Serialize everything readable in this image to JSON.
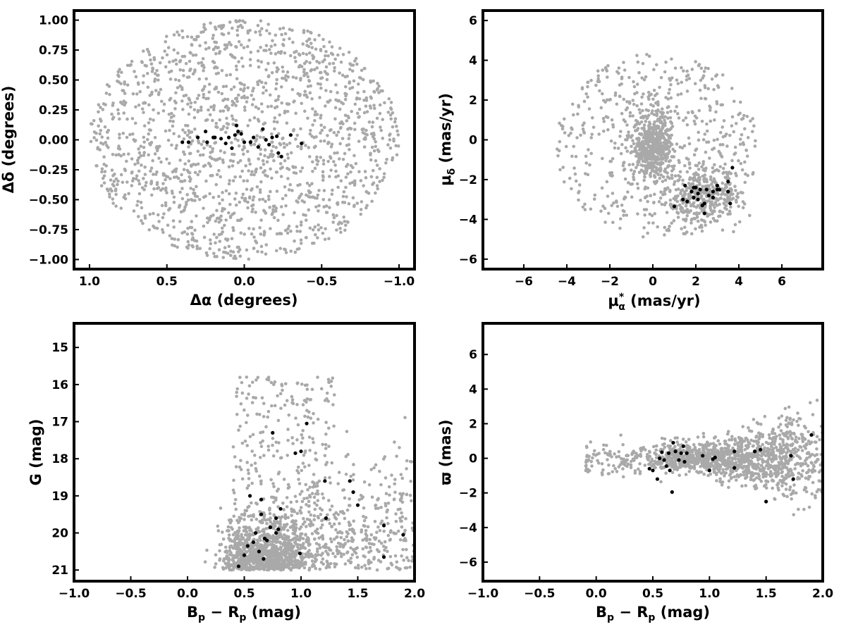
{
  "colors": {
    "background_points": "#a9a9a9",
    "member_points": "#000000",
    "frame": "#000000"
  },
  "chart_data": [
    {
      "id": "position",
      "type": "scatter",
      "title": "",
      "xlabel": "Δα (degrees)",
      "ylabel": "Δδ (degrees)",
      "xlim": [
        1.1,
        -1.1
      ],
      "ylim": [
        -1.08,
        1.08
      ],
      "x_inverted": true,
      "xticks": [
        1.0,
        0.5,
        0.0,
        -0.5,
        -1.0
      ],
      "xtick_labels": [
        "1.0",
        "0.5",
        "0.0",
        "−0.5",
        "−1.0"
      ],
      "yticks": [
        1.0,
        0.75,
        0.5,
        0.25,
        0.0,
        -0.25,
        -0.5,
        -0.75,
        -1.0
      ],
      "ytick_labels": [
        "1.00",
        "0.75",
        "0.50",
        "0.25",
        "0.00",
        "−0.25",
        "−0.50",
        "−0.75",
        "−1.00"
      ],
      "grid": false,
      "series": [
        {
          "role": "field",
          "color": "#a9a9a9",
          "count": 1600,
          "distribution": {
            "shape": "disc",
            "center": [
              0,
              0
            ],
            "radius": 1.0
          }
        },
        {
          "role": "member",
          "color": "#000000",
          "points": [
            [
              0.4,
              -0.02
            ],
            [
              0.36,
              -0.02
            ],
            [
              0.3,
              0.02
            ],
            [
              0.25,
              0.07
            ],
            [
              0.24,
              -0.02
            ],
            [
              0.2,
              0.02
            ],
            [
              0.19,
              0.02
            ],
            [
              0.15,
              0.01
            ],
            [
              0.12,
              -0.03
            ],
            [
              0.1,
              0.02
            ],
            [
              0.08,
              -0.07
            ],
            [
              0.06,
              0.04
            ],
            [
              0.05,
              0.12
            ],
            [
              0.04,
              0.07
            ],
            [
              0.02,
              0.05
            ],
            [
              0.0,
              -0.02
            ],
            [
              -0.04,
              -0.02
            ],
            [
              -0.06,
              0.02
            ],
            [
              -0.09,
              -0.06
            ],
            [
              -0.12,
              0.09
            ],
            [
              -0.14,
              0.0
            ],
            [
              -0.16,
              -0.04
            ],
            [
              -0.18,
              0.02
            ],
            [
              -0.21,
              0.03
            ],
            [
              -0.22,
              -0.11
            ],
            [
              -0.24,
              -0.14
            ],
            [
              -0.3,
              0.04
            ],
            [
              -0.37,
              -0.03
            ]
          ]
        }
      ]
    },
    {
      "id": "proper-motion",
      "type": "scatter",
      "title": "",
      "xlabel_main": "μ",
      "xlabel_sub": "α",
      "xlabel_sup": "*",
      "xlabel_rest": " (mas/yr)",
      "ylabel_main": "μ",
      "ylabel_sub": "δ",
      "ylabel_rest": " (mas/yr)",
      "xlim": [
        -7.9,
        7.9
      ],
      "ylim": [
        -6.5,
        6.5
      ],
      "xticks": [
        -6,
        -4,
        -2,
        0,
        2,
        4,
        6
      ],
      "xtick_labels": [
        "−6",
        "−4",
        "−2",
        "0",
        "2",
        "4",
        "6"
      ],
      "yticks": [
        -6,
        -4,
        -2,
        0,
        2,
        4,
        6
      ],
      "ytick_labels": [
        "−6",
        "−4",
        "−2",
        "0",
        "2",
        "4",
        "6"
      ],
      "grid": false,
      "series": [
        {
          "role": "field",
          "color": "#a9a9a9",
          "count": 1400,
          "distribution": {
            "shape": "two-clumps-in-disc",
            "clump_1": [
              0,
              -0.4
            ],
            "clump_2": [
              2.3,
              -2.8
            ],
            "disc_center": [
              0.2,
              -0.3
            ],
            "disc_radius": 4.7
          }
        },
        {
          "role": "member",
          "color": "#000000",
          "points": [
            [
              1.0,
              -3.35
            ],
            [
              1.4,
              -3.0
            ],
            [
              1.5,
              -2.3
            ],
            [
              1.6,
              -3.1
            ],
            [
              1.8,
              -2.6
            ],
            [
              1.9,
              -2.4
            ],
            [
              1.9,
              -2.9
            ],
            [
              2.0,
              -2.4
            ],
            [
              2.1,
              -2.7
            ],
            [
              2.1,
              -3.0
            ],
            [
              2.2,
              -2.5
            ],
            [
              2.3,
              -3.3
            ],
            [
              2.4,
              -3.7
            ],
            [
              2.4,
              -3.2
            ],
            [
              2.5,
              -2.5
            ],
            [
              2.6,
              -2.8
            ],
            [
              2.8,
              -2.9
            ],
            [
              2.8,
              -2.6
            ],
            [
              3.0,
              -2.3
            ],
            [
              3.0,
              -2.5
            ],
            [
              3.1,
              -2.5
            ],
            [
              3.5,
              -2.6
            ],
            [
              3.6,
              -3.2
            ],
            [
              3.5,
              -2.1
            ],
            [
              3.7,
              -1.4
            ]
          ]
        }
      ]
    },
    {
      "id": "cmd",
      "type": "scatter",
      "title": "",
      "xlabel_main": "B",
      "xlabel_sub1": "p",
      "xlabel_mid": " − R",
      "xlabel_sub2": "p",
      "xlabel_rest": " (mag)",
      "ylabel": "G (mag)",
      "xlim": [
        -1.0,
        2.0
      ],
      "ylim": [
        21.3,
        14.35
      ],
      "y_inverted": true,
      "xticks": [
        -1.0,
        -0.5,
        0.0,
        0.5,
        1.0,
        1.5,
        2.0
      ],
      "xtick_labels": [
        "−1.0",
        "−0.5",
        "0.0",
        "0.5",
        "1.0",
        "1.5",
        "2.0"
      ],
      "yticks": [
        21,
        20,
        19,
        18,
        17,
        16,
        15
      ],
      "ytick_labels": [
        "21",
        "20",
        "19",
        "18",
        "17",
        "16",
        "15"
      ],
      "grid": false,
      "series": [
        {
          "role": "field",
          "color": "#a9a9a9",
          "count": 1700,
          "distribution": {
            "shape": "faint-sequence",
            "x_range": [
              0.3,
              2.0
            ],
            "y_range": [
              15.0,
              21.0
            ]
          }
        },
        {
          "role": "member",
          "color": "#000000",
          "points": [
            [
              0.45,
              20.9
            ],
            [
              0.5,
              20.6
            ],
            [
              0.53,
              20.35
            ],
            [
              0.58,
              20.25
            ],
            [
              0.6,
              20.0
            ],
            [
              0.63,
              20.5
            ],
            [
              0.65,
              19.5
            ],
            [
              0.65,
              19.1
            ],
            [
              0.67,
              20.7
            ],
            [
              0.68,
              20.15
            ],
            [
              0.7,
              20.2
            ],
            [
              0.73,
              19.85
            ],
            [
              0.55,
              19.0
            ],
            [
              0.75,
              17.3
            ],
            [
              0.78,
              20.0
            ],
            [
              0.78,
              19.6
            ],
            [
              0.8,
              19.9
            ],
            [
              0.82,
              19.35
            ],
            [
              0.95,
              17.85
            ],
            [
              0.99,
              20.55
            ],
            [
              1.0,
              17.8
            ],
            [
              1.05,
              17.05
            ],
            [
              1.22,
              19.6
            ],
            [
              1.21,
              18.6
            ],
            [
              1.43,
              18.6
            ],
            [
              1.46,
              18.9
            ],
            [
              1.5,
              19.25
            ],
            [
              1.73,
              19.8
            ],
            [
              1.73,
              20.65
            ],
            [
              1.9,
              20.05
            ]
          ]
        }
      ]
    },
    {
      "id": "parallax",
      "type": "scatter",
      "title": "",
      "xlabel_main": "B",
      "xlabel_sub1": "p",
      "xlabel_mid": " − R",
      "xlabel_sub2": "p",
      "xlabel_rest": " (mag)",
      "ylabel": "ϖ (mas)",
      "xlim": [
        -1.0,
        2.0
      ],
      "ylim": [
        -7.1,
        7.8
      ],
      "xticks": [
        -1.0,
        -0.5,
        0.0,
        0.5,
        1.0,
        1.5,
        2.0
      ],
      "xtick_labels": [
        "−1.0",
        "−0.5",
        "0.0",
        "0.5",
        "1.0",
        "1.5",
        "2.0"
      ],
      "yticks": [
        -6,
        -4,
        -2,
        0,
        2,
        4,
        6
      ],
      "ytick_labels": [
        "−6",
        "−4",
        "−2",
        "0",
        "2",
        "4",
        "6"
      ],
      "grid": false,
      "series": [
        {
          "role": "field",
          "color": "#a9a9a9",
          "count": 1400,
          "distribution": {
            "shape": "band",
            "x_range": [
              -0.1,
              2.0
            ],
            "y_center": 0.0,
            "spread_grows_with_x": true
          }
        },
        {
          "role": "member",
          "color": "#000000",
          "points": [
            [
              0.47,
              -0.6
            ],
            [
              0.5,
              -0.7
            ],
            [
              0.54,
              -1.2
            ],
            [
              0.56,
              0.0
            ],
            [
              0.58,
              0.35
            ],
            [
              0.6,
              -0.1
            ],
            [
              0.62,
              -0.45
            ],
            [
              0.64,
              0.3
            ],
            [
              0.65,
              -0.7
            ],
            [
              0.67,
              -1.95
            ],
            [
              0.68,
              0.9
            ],
            [
              0.7,
              0.4
            ],
            [
              0.73,
              -0.1
            ],
            [
              0.75,
              0.3
            ],
            [
              0.77,
              0.7
            ],
            [
              0.78,
              -0.2
            ],
            [
              0.8,
              0.3
            ],
            [
              0.94,
              0.15
            ],
            [
              1.0,
              -0.7
            ],
            [
              1.03,
              -0.05
            ],
            [
              1.05,
              0.05
            ],
            [
              1.22,
              0.4
            ],
            [
              1.22,
              -0.55
            ],
            [
              1.4,
              0.4
            ],
            [
              1.45,
              0.5
            ],
            [
              1.5,
              -2.5
            ],
            [
              1.72,
              0.15
            ],
            [
              1.74,
              -1.2
            ],
            [
              1.9,
              1.35
            ]
          ]
        }
      ]
    }
  ]
}
